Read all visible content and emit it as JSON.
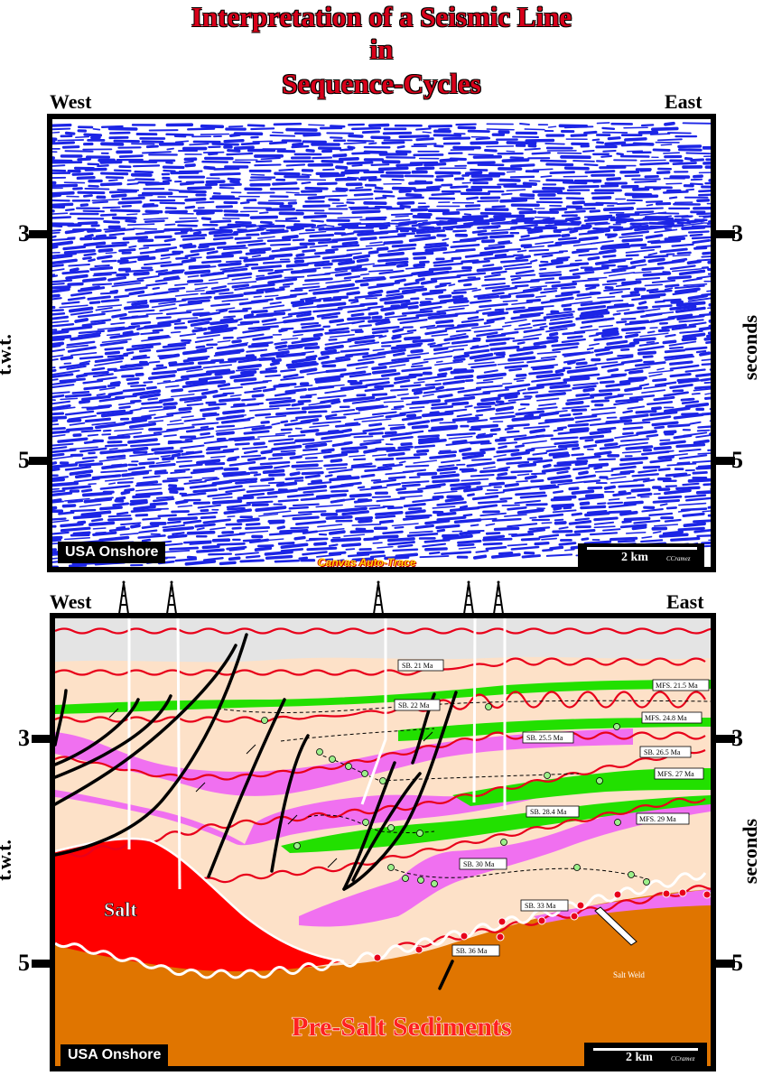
{
  "title": {
    "line1": "Interpretation of a Seismic Line",
    "line2": "in",
    "line3": "Sequence-Cycles"
  },
  "top_panel": {
    "west": "West",
    "east": "East",
    "time_ticks": [
      "3",
      "5"
    ],
    "left_axis": "t.w.t.",
    "right_axis": "seconds",
    "location_badge": "USA Onshore",
    "scale_label": "2 km",
    "credit": "CCramez",
    "software_label": "Canvas Auto-Trace"
  },
  "bottom_panel": {
    "west": "West",
    "east": "East",
    "time_ticks": [
      "3",
      "5"
    ],
    "left_axis": "t.w.t.",
    "right_axis": "seconds",
    "location_badge": "USA Onshore",
    "scale_label": "2 km",
    "credit": "CCramez",
    "salt_label": "Salt",
    "presalt_label": "Pre-Salt Sediments",
    "salt_weld_label": "Salt Weld",
    "surface_labels": {
      "sb21": "SB. 21 Ma",
      "mfs215": "MFS. 21.5 Ma",
      "sb22": "SB. 22 Ma",
      "mfs248": "MFS. 24.8 Ma",
      "sb255": "SB. 25.5 Ma",
      "sb265": "SB. 26.5 Ma",
      "mfs27": "MFS. 27 Ma",
      "sb284": "SB. 28.4 Ma",
      "mfs29": "MFS. 29 Ma",
      "sb30": "SB. 30 Ma",
      "sb33": "SB. 33 Ma",
      "sb36": "SB. 36 Ma"
    }
  },
  "colors": {
    "title_red": "#d8001a",
    "seismic_blue": "#1c25e6",
    "salt_red": "#ff0000",
    "presalt_orange": "#e07500",
    "lowstand_magenta": "#f070f0",
    "mfs_green": "#22e000",
    "highstand_peach": "#fde1c8",
    "unconformity_red": "#e8001a"
  }
}
